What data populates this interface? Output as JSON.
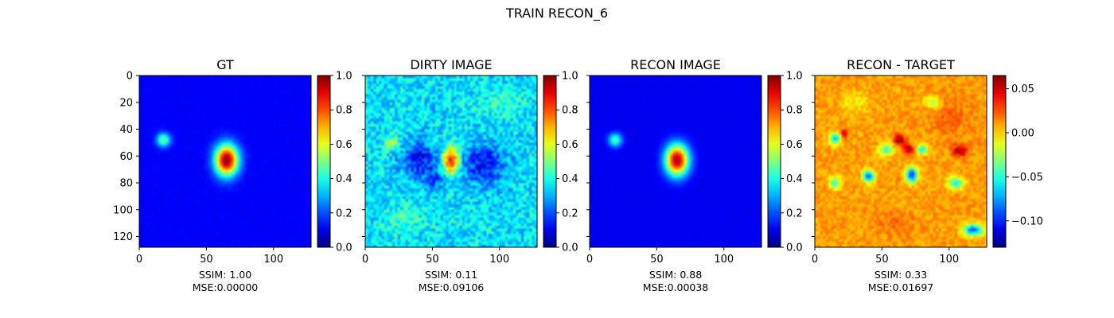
{
  "figure": {
    "suptitle": "TRAIN RECON_6",
    "colormap": "jet"
  },
  "chart_data": [
    {
      "type": "heatmap",
      "title": "GT",
      "xlim": [
        0,
        128
      ],
      "ylim": [
        128,
        0
      ],
      "x_ticks": [
        0,
        50,
        100
      ],
      "y_ticks": [
        0,
        20,
        40,
        60,
        80,
        100,
        120
      ],
      "show_y_tick_labels": true,
      "colorbar": {
        "range": [
          0.0,
          1.0
        ],
        "ticks": [
          "0.0",
          "0.2",
          "0.4",
          "0.6",
          "0.8",
          "1.0"
        ]
      },
      "background_level": 0.12,
      "noise": 0.01,
      "blobs": [
        {
          "x": 65,
          "y": 63,
          "sx": 6,
          "sy": 8,
          "amp": 0.88
        },
        {
          "x": 18,
          "y": 48,
          "sx": 3.5,
          "sy": 3.5,
          "amp": 0.38
        }
      ],
      "caption": [
        "SSIM: 1.00",
        "MSE:0.00000"
      ]
    },
    {
      "type": "heatmap",
      "title": "DIRTY IMAGE",
      "xlim": [
        0,
        128
      ],
      "ylim": [
        128,
        0
      ],
      "x_ticks": [
        0,
        50,
        100
      ],
      "y_ticks": [
        0,
        20,
        40,
        60,
        80,
        100,
        120
      ],
      "show_y_tick_labels": false,
      "colorbar": {
        "range": [
          0.0,
          1.0
        ],
        "ticks": [
          "0.0",
          "0.2",
          "0.4",
          "0.6",
          "0.8",
          "1.0"
        ]
      },
      "background_level": 0.35,
      "noise": 0.1,
      "blobs": [
        {
          "x": 64,
          "y": 63,
          "sx": 4,
          "sy": 7,
          "amp": 0.55
        },
        {
          "x": 40,
          "y": 62,
          "sx": 9,
          "sy": 9,
          "amp": -0.22
        },
        {
          "x": 88,
          "y": 66,
          "sx": 11,
          "sy": 10,
          "amp": -0.22
        },
        {
          "x": 50,
          "y": 78,
          "sx": 6,
          "sy": 5,
          "amp": -0.12
        },
        {
          "x": 20,
          "y": 50,
          "sx": 4,
          "sy": 4,
          "amp": 0.18
        },
        {
          "x": 100,
          "y": 20,
          "sx": 12,
          "sy": 8,
          "amp": 0.08
        },
        {
          "x": 30,
          "y": 108,
          "sx": 14,
          "sy": 8,
          "amp": 0.07
        }
      ],
      "caption": [
        "SSIM: 0.11",
        "MSE:0.09106"
      ]
    },
    {
      "type": "heatmap",
      "title": "RECON IMAGE",
      "xlim": [
        0,
        128
      ],
      "ylim": [
        128,
        0
      ],
      "x_ticks": [
        0,
        50,
        100
      ],
      "y_ticks": [
        0,
        20,
        40,
        60,
        80,
        100,
        120
      ],
      "show_y_tick_labels": false,
      "colorbar": {
        "range": [
          0.0,
          1.0
        ],
        "ticks": [
          "0.0",
          "0.2",
          "0.4",
          "0.6",
          "0.8",
          "1.0"
        ]
      },
      "background_level": 0.11,
      "noise": 0.006,
      "blobs": [
        {
          "x": 65,
          "y": 63,
          "sx": 6,
          "sy": 8,
          "amp": 0.86
        },
        {
          "x": 19,
          "y": 48,
          "sx": 3.5,
          "sy": 3.5,
          "amp": 0.35
        }
      ],
      "caption": [
        "SSIM: 0.88",
        "MSE:0.00038"
      ]
    },
    {
      "type": "heatmap",
      "title": "RECON - TARGET",
      "xlim": [
        0,
        128
      ],
      "ylim": [
        128,
        0
      ],
      "x_ticks": [
        0,
        50,
        100
      ],
      "y_ticks": [
        0,
        20,
        40,
        60,
        80,
        100,
        120
      ],
      "show_y_tick_labels": false,
      "colorbar": {
        "range": [
          -0.13,
          0.065
        ],
        "ticks": [
          "0.05",
          "0.00",
          "−0.05",
          "−0.10"
        ],
        "tick_values": [
          0.05,
          0.0,
          -0.05,
          -0.1
        ]
      },
      "background_level": 0.72,
      "noise": 0.05,
      "blobs": [
        {
          "x": 15,
          "y": 47,
          "sx": 3,
          "sy": 3,
          "amp": -0.4
        },
        {
          "x": 22,
          "y": 43,
          "sx": 2,
          "sy": 2,
          "amp": 0.22
        },
        {
          "x": 53,
          "y": 55,
          "sx": 4,
          "sy": 3,
          "amp": -0.28
        },
        {
          "x": 63,
          "y": 48,
          "sx": 3,
          "sy": 3,
          "amp": 0.26
        },
        {
          "x": 70,
          "y": 55,
          "sx": 2.5,
          "sy": 2.5,
          "amp": 0.24
        },
        {
          "x": 40,
          "y": 75,
          "sx": 3,
          "sy": 3,
          "amp": -0.52
        },
        {
          "x": 72,
          "y": 74,
          "sx": 3,
          "sy": 4,
          "amp": -0.55
        },
        {
          "x": 80,
          "y": 55,
          "sx": 3,
          "sy": 2.5,
          "amp": -0.32
        },
        {
          "x": 88,
          "y": 20,
          "sx": 4,
          "sy": 3,
          "amp": -0.22
        },
        {
          "x": 108,
          "y": 56,
          "sx": 4,
          "sy": 3,
          "amp": 0.24
        },
        {
          "x": 105,
          "y": 80,
          "sx": 4,
          "sy": 3,
          "amp": -0.36
        },
        {
          "x": 118,
          "y": 115,
          "sx": 5,
          "sy": 3,
          "amp": -0.5
        },
        {
          "x": 15,
          "y": 80,
          "sx": 3,
          "sy": 3,
          "amp": -0.28
        },
        {
          "x": 100,
          "y": 30,
          "sx": 10,
          "sy": 10,
          "amp": 0.06
        },
        {
          "x": 30,
          "y": 20,
          "sx": 8,
          "sy": 6,
          "amp": -0.08
        },
        {
          "x": 60,
          "y": 110,
          "sx": 10,
          "sy": 6,
          "amp": 0.05
        }
      ],
      "caption": [
        "SSIM: 0.33",
        "MSE:0.01697"
      ]
    }
  ]
}
